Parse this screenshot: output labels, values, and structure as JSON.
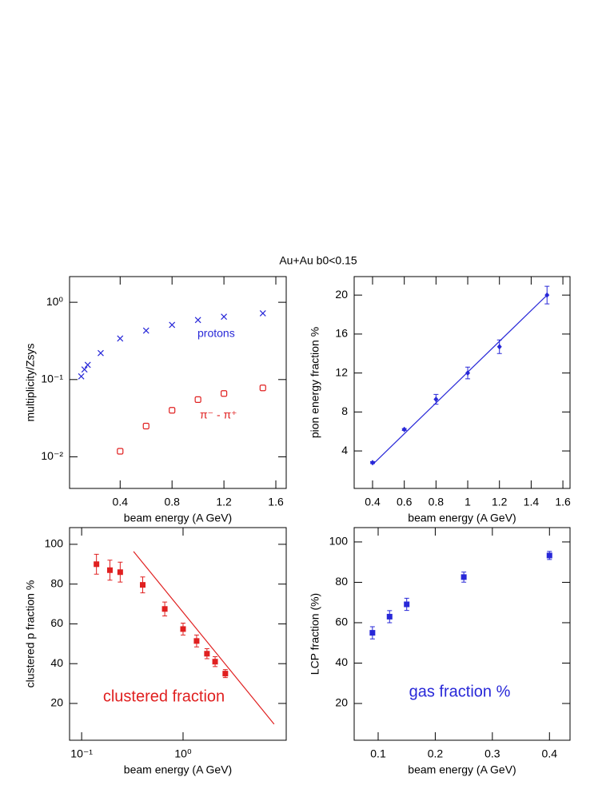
{
  "title": "Au+Au  b0<0.15",
  "chart_data": [
    {
      "type": "scatter",
      "xlabel": "beam energy (A GeV)",
      "ylabel": "multiplicity/Zsys",
      "xlim": [
        0.01,
        1.68
      ],
      "ylim": [
        0.0039,
        2.15
      ],
      "yscale": "log",
      "xticks": [
        0.4,
        0.8,
        1.2,
        1.6
      ],
      "yticks": [
        {
          "value": 0.01,
          "label": "10⁻²"
        },
        {
          "value": 0.1,
          "label": "10⁻¹"
        },
        {
          "value": 1,
          "label": "10⁰"
        }
      ],
      "series": [
        {
          "name": "protons",
          "color": "#2828d8",
          "marker": "x",
          "x": [
            0.1,
            0.125,
            0.15,
            0.25,
            0.4,
            0.6,
            0.8,
            1.0,
            1.2,
            1.5
          ],
          "values": [
            0.11,
            0.135,
            0.155,
            0.22,
            0.34,
            0.43,
            0.51,
            0.59,
            0.65,
            0.72
          ]
        },
        {
          "name": "π⁻ - π⁺",
          "color": "#e02020",
          "marker": "open-square",
          "x": [
            0.4,
            0.6,
            0.8,
            1.0,
            1.2,
            1.5
          ],
          "values": [
            0.0118,
            0.025,
            0.04,
            0.055,
            0.066,
            0.078
          ]
        }
      ]
    },
    {
      "type": "scatter",
      "xlabel": "beam energy (A GeV)",
      "ylabel": "pion energy fraction %",
      "xlim": [
        0.284,
        1.645
      ],
      "ylim": [
        0.15,
        21.9
      ],
      "xticks": [
        0.4,
        0.6,
        0.8,
        1.0,
        1.2,
        1.4,
        1.6
      ],
      "yticks": [
        4,
        8,
        12,
        16,
        20
      ],
      "series": [
        {
          "color": "#2828d8",
          "marker": "diamond",
          "x": [
            0.4,
            0.6,
            0.8,
            1.0,
            1.2,
            1.5
          ],
          "values": [
            2.8,
            6.2,
            9.3,
            12.0,
            14.7,
            20.0
          ],
          "errors": [
            0.1,
            0.1,
            0.5,
            0.6,
            0.7,
            0.9
          ]
        },
        {
          "color": "#2828d8",
          "marker": "line",
          "x": [
            0.4,
            1.5
          ],
          "values": [
            2.6,
            20.0
          ]
        }
      ]
    },
    {
      "type": "scatter",
      "xlabel": "beam energy (A GeV)",
      "ylabel": "clustered p fraction %",
      "annotation": "clustered fraction",
      "annotation_color": "#e02020",
      "xlim": [
        0.076,
        10.4
      ],
      "ylim": [
        1.5,
        108.4
      ],
      "xscale": "log",
      "xticks": [
        {
          "value": 0.1,
          "label": "10⁻¹"
        },
        {
          "value": 1,
          "label": "10⁰"
        }
      ],
      "yticks": [
        20,
        40,
        60,
        80,
        100
      ],
      "series": [
        {
          "color": "#e02020",
          "marker": "square",
          "x": [
            0.14,
            0.19,
            0.24,
            0.4,
            0.66,
            1.0,
            1.36,
            1.72,
            2.07,
            2.61
          ],
          "values": [
            90,
            87,
            86,
            79.6,
            67.5,
            57.4,
            51.4,
            45,
            41,
            35
          ],
          "errors": [
            5,
            5,
            5,
            4,
            3.5,
            3,
            3,
            2.5,
            2.5,
            2
          ]
        },
        {
          "color": "#e02020",
          "marker": "line",
          "x": [
            0.325,
            7.9
          ],
          "values": [
            96.4,
            9.6
          ]
        }
      ]
    },
    {
      "type": "scatter",
      "xlabel": "beam energy (A GeV)",
      "ylabel": "LCP fraction (%)",
      "annotation": "gas fraction %",
      "annotation_color": "#2828d8",
      "xlim": [
        0.058,
        0.436
      ],
      "ylim": [
        1.8,
        107.1
      ],
      "xticks": [
        0.1,
        0.2,
        0.3,
        0.4
      ],
      "yticks": [
        20,
        40,
        60,
        80,
        100
      ],
      "series": [
        {
          "color": "#2828d8",
          "marker": "square",
          "x": [
            0.09,
            0.12,
            0.15,
            0.25,
            0.4
          ],
          "values": [
            55,
            63,
            69.1,
            82.6,
            93.3
          ],
          "errors": [
            3,
            3,
            3,
            2.5,
            2
          ]
        }
      ]
    }
  ]
}
